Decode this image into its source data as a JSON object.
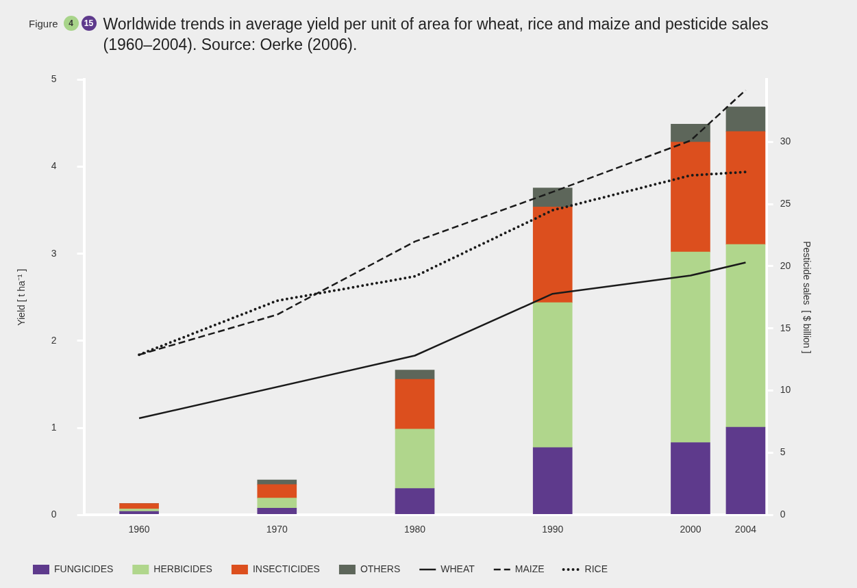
{
  "chart_data": {
    "type": "bar",
    "title": "Worldwide trends in average yield per unit of area for wheat, rice and maize and pesticide sales (1960–2004). Source: Oerke (2006).",
    "annotations": [
      "Figure",
      "4",
      "15"
    ],
    "ylabel": "Yield [ t ha⁻¹ ]",
    "y2label": "Pesticide sales  [ $ billion ]",
    "x": [
      1960,
      1970,
      1980,
      1990,
      2000,
      2004
    ],
    "xlim": [
      1956,
      2005.5
    ],
    "xticks": [
      1960,
      1970,
      1980,
      1990,
      2000,
      2004
    ],
    "ylim": [
      0,
      5
    ],
    "yticks": [
      0,
      1,
      2,
      3,
      4,
      5
    ],
    "y2lim": [
      0,
      35
    ],
    "y2ticks": [
      0,
      5,
      10,
      15,
      20,
      25,
      30
    ],
    "stacked": true,
    "grid": false,
    "legend": "bottom",
    "series": [
      {
        "name": "FUNGICIDES",
        "color": "#5e3a8c",
        "axis": "y2",
        "values": [
          0.28,
          0.54,
          2.13,
          5.41,
          5.82,
          7.05
        ]
      },
      {
        "name": "HERBICIDES",
        "color": "#b0d68c",
        "axis": "y2",
        "values": [
          0.2,
          0.81,
          4.77,
          11.66,
          15.32,
          14.7
        ]
      },
      {
        "name": "INSECTICIDES",
        "color": "#dc4f1e",
        "axis": "y2",
        "values": [
          0.43,
          1.09,
          4.0,
          7.7,
          8.84,
          9.08
        ]
      },
      {
        "name": "OTHERS",
        "color": "#5d665a",
        "axis": "y2",
        "values": [
          0,
          0.37,
          0.75,
          1.52,
          1.45,
          1.99
        ]
      },
      {
        "name": "WHEAT",
        "type": "line",
        "line_style": "solid",
        "color": "#1a1a1a",
        "x": [
          1960,
          1980,
          1990,
          2000,
          2004
        ],
        "values": [
          1.11,
          1.83,
          2.54,
          2.75,
          2.9
        ]
      },
      {
        "name": "MAIZE",
        "type": "line",
        "line_style": "dashed",
        "color": "#1a1a1a",
        "x": [
          1960,
          1970,
          1980,
          1990,
          2000,
          2004
        ],
        "values": [
          1.84,
          2.3,
          3.14,
          3.71,
          4.3,
          4.88
        ]
      },
      {
        "name": "RICE",
        "type": "line",
        "line_style": "dotted",
        "color": "#1a1a1a",
        "x": [
          1960,
          1970,
          1980,
          1990,
          2000,
          2004
        ],
        "values": [
          1.84,
          2.46,
          2.74,
          3.5,
          3.9,
          3.94
        ]
      }
    ]
  }
}
